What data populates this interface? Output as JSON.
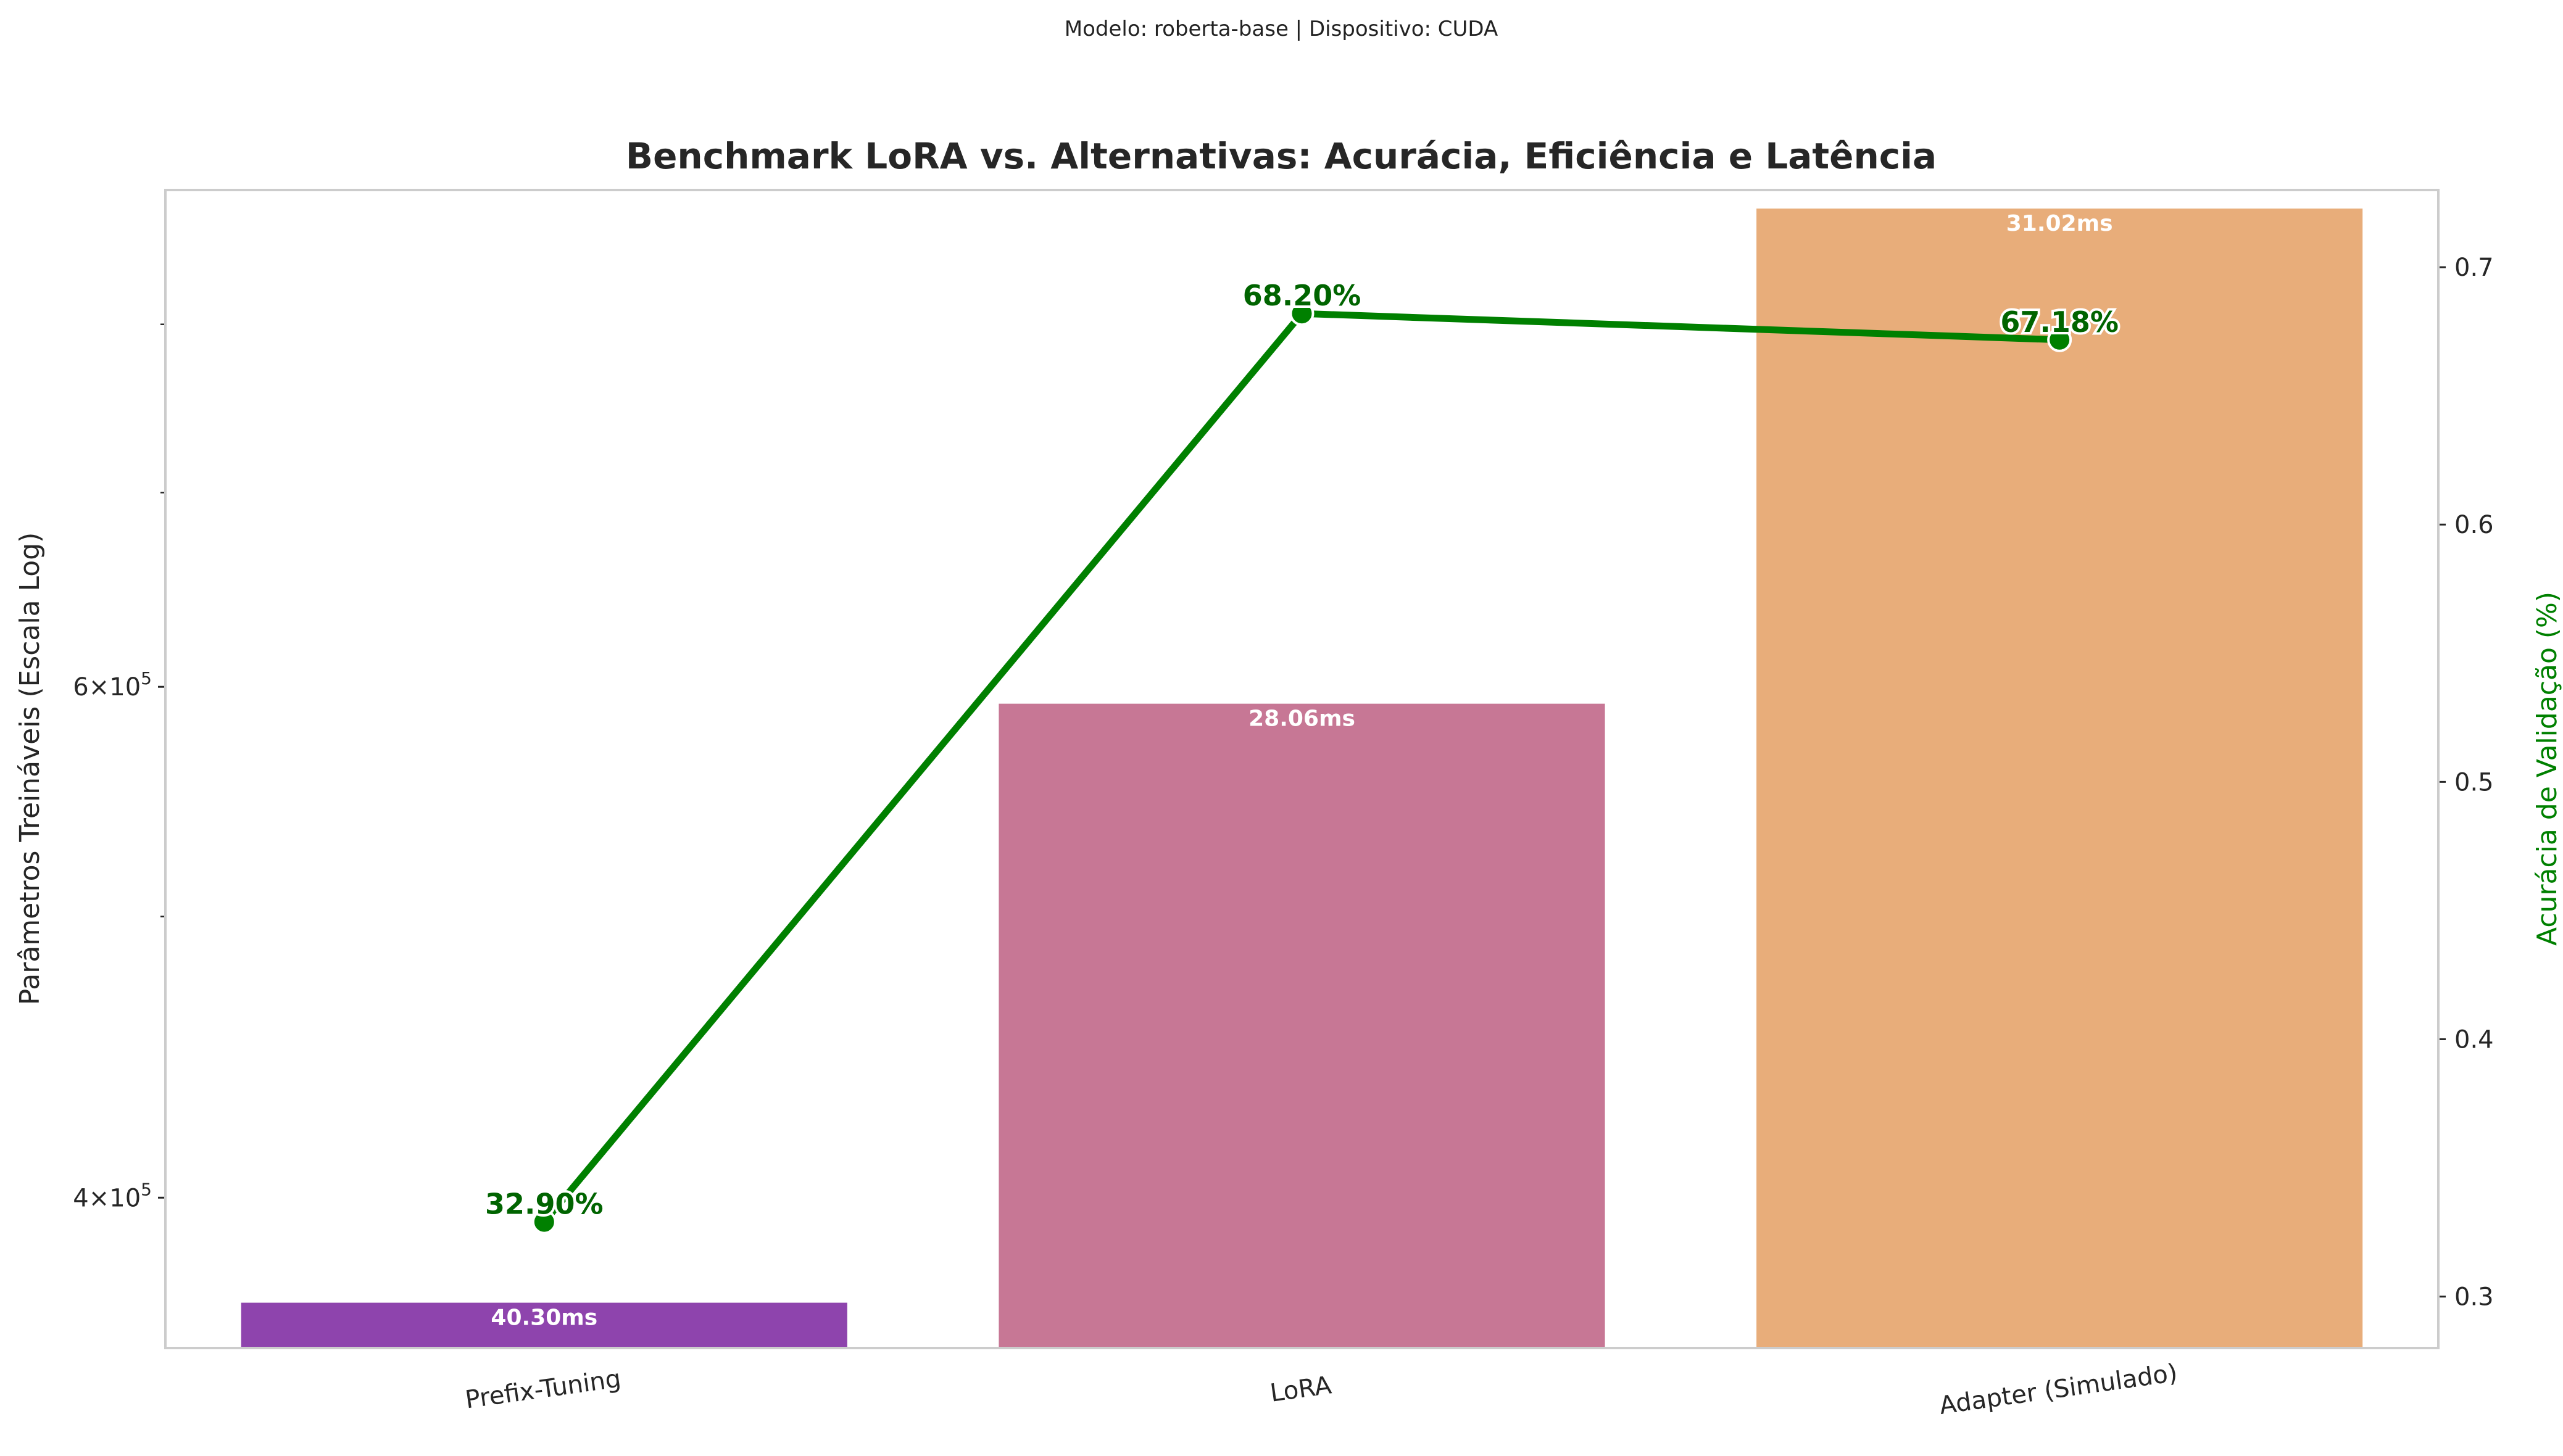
{
  "suptitle": "Modelo: roberta-base | Dispositivo: CUDA",
  "chart_data": {
    "type": "bar",
    "title": "Benchmark LoRA vs. Alternativas: Acurácia, Eficiência e Latência",
    "xlabel": "",
    "ylabel": "Parâmetros Treináveis (Escala Log)",
    "y2label": "Acurácia de Validação (%)",
    "yscale": "log",
    "ylim": [
      355000,
      890000
    ],
    "yticks": [
      {
        "value": 400000,
        "mantissa": "4",
        "base": "10",
        "exp": "5"
      },
      {
        "value": 600000,
        "mantissa": "6",
        "base": "10",
        "exp": "5"
      }
    ],
    "y_minor_ticks": [
      500000,
      700000,
      800000,
      900000
    ],
    "y2lim": [
      0.28,
      0.73
    ],
    "y2ticks": [
      "0.3",
      "0.4",
      "0.5",
      "0.6",
      "0.7"
    ],
    "categories": [
      "Prefix-Tuning",
      "LoRA",
      "Adapter (Simulado)"
    ],
    "series": [
      {
        "kind": "bar",
        "axis": "left",
        "values": [
          368000,
          592000,
          877000
        ],
        "colors": [
          "#8e44ad",
          "#c77795",
          "#e8ad7a"
        ],
        "labels": [
          "40.30ms",
          "28.06ms",
          "31.02ms"
        ]
      },
      {
        "kind": "line",
        "axis": "right",
        "color": "#008000",
        "values": [
          0.329,
          0.682,
          0.6718
        ],
        "labels": [
          "32.90%",
          "68.20%",
          "67.18%"
        ]
      }
    ],
    "grid": false
  }
}
